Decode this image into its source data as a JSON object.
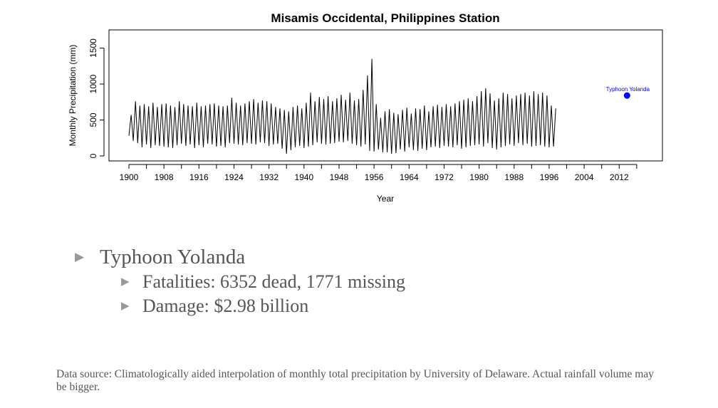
{
  "chart_data": {
    "type": "line",
    "title": "Misamis Occidental, Philippines Station",
    "xlabel": "Year",
    "ylabel": "Monthly Precipitation (mm)",
    "xlim": [
      1900,
      2017
    ],
    "ylim": [
      0,
      1500
    ],
    "x_ticks": [
      1900,
      1904,
      1908,
      1912,
      1916,
      1920,
      1924,
      1928,
      1932,
      1936,
      1940,
      1944,
      1948,
      1952,
      1956,
      1960,
      1964,
      1968,
      1972,
      1976,
      1980,
      1984,
      1988,
      1992,
      1996,
      2000,
      2004,
      2008,
      2012,
      2016
    ],
    "x_tick_labels": [
      "1900",
      "1908",
      "1916",
      "1924",
      "1932",
      "1940",
      "1948",
      "1956",
      "1964",
      "1972",
      "1980",
      "1988",
      "1996",
      "2004",
      "2012"
    ],
    "y_ticks": [
      0,
      500,
      1000,
      1500
    ],
    "y_tick_labels": [
      "0",
      "500",
      "1000",
      "1500"
    ],
    "grid": false,
    "series": [
      {
        "name": "",
        "color": "#000000",
        "x_start": 1900,
        "step": 0.5,
        "values": [
          280,
          570,
          210,
          760,
          180,
          700,
          120,
          720,
          160,
          690,
          110,
          740,
          150,
          680,
          140,
          720,
          130,
          730,
          120,
          700,
          110,
          680,
          150,
          760,
          170,
          720,
          140,
          700,
          160,
          690,
          110,
          740,
          150,
          690,
          120,
          700,
          170,
          720,
          160,
          730,
          130,
          700,
          140,
          690,
          120,
          700,
          180,
          810,
          170,
          740,
          160,
          700,
          150,
          730,
          180,
          760,
          170,
          790,
          160,
          740,
          190,
          770,
          180,
          760,
          140,
          730,
          160,
          680,
          170,
          660,
          100,
          640,
          30,
          620,
          80,
          680,
          120,
          700,
          140,
          660,
          110,
          740,
          130,
          880,
          150,
          760,
          190,
          820,
          170,
          790,
          160,
          830,
          170,
          760,
          180,
          800,
          200,
          850,
          190,
          780,
          210,
          880,
          170,
          770,
          150,
          790,
          130,
          920,
          160,
          1120,
          70,
          1350,
          60,
          720,
          90,
          530,
          50,
          620,
          50,
          650,
          30,
          600,
          40,
          580,
          90,
          640,
          60,
          670,
          120,
          590,
          80,
          660,
          70,
          650,
          100,
          700,
          80,
          620,
          120,
          690,
          130,
          710,
          110,
          680,
          140,
          720,
          130,
          690,
          120,
          730,
          150,
          760,
          100,
          780,
          120,
          800,
          140,
          760,
          150,
          830,
          160,
          900,
          130,
          940,
          180,
          870,
          110,
          770,
          90,
          800,
          120,
          880,
          140,
          860,
          160,
          800,
          140,
          840,
          180,
          860,
          150,
          880,
          170,
          840,
          130,
          900,
          140,
          860,
          150,
          880,
          130,
          840,
          120,
          700,
          130,
          660
        ]
      }
    ],
    "annotation": {
      "label": "Typhoon Yolanda",
      "x": 2013.8,
      "y": 840,
      "color": "#0000ff"
    }
  },
  "bullets": {
    "main": "Typhoon Yolanda",
    "sub": [
      "Fatalities: 6352 dead, 1771 missing",
      "Damage: $2.98 billion"
    ]
  },
  "footnote": "Data source: Climatologically aided interpolation of monthly total precipitation by University of Delaware. Actual rainfall volume may be bigger."
}
